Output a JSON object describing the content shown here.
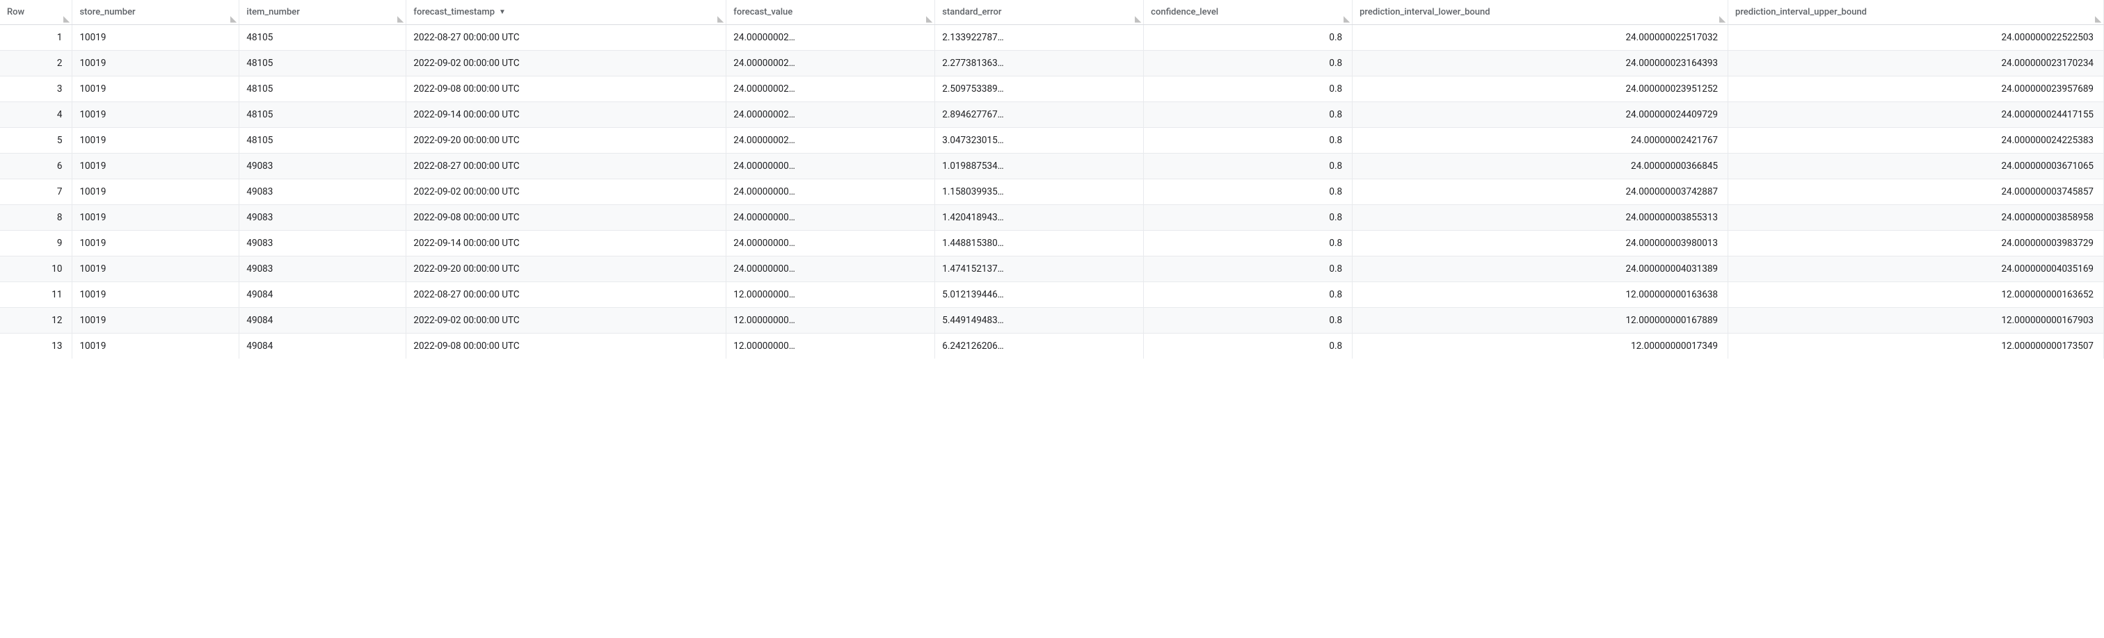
{
  "table": {
    "columns": [
      {
        "key": "row",
        "label": "Row",
        "align": "right",
        "sortable": false,
        "sorted": false
      },
      {
        "key": "store_number",
        "label": "store_number",
        "align": "left",
        "sortable": true,
        "sorted": false
      },
      {
        "key": "item_number",
        "label": "item_number",
        "align": "left",
        "sortable": true,
        "sorted": false
      },
      {
        "key": "forecast_timestamp",
        "label": "forecast_timestamp",
        "align": "left",
        "sortable": true,
        "sorted": true
      },
      {
        "key": "forecast_value",
        "label": "forecast_value",
        "align": "left",
        "sortable": true,
        "sorted": false
      },
      {
        "key": "standard_error",
        "label": "standard_error",
        "align": "left",
        "sortable": true,
        "sorted": false
      },
      {
        "key": "confidence_level",
        "label": "confidence_level",
        "align": "right",
        "sortable": true,
        "sorted": false
      },
      {
        "key": "prediction_interval_lower_bound",
        "label": "prediction_interval_lower_bound",
        "align": "right",
        "sortable": true,
        "sorted": false
      },
      {
        "key": "prediction_interval_upper_bound",
        "label": "prediction_interval_upper_bound",
        "align": "right",
        "sortable": true,
        "sorted": false
      }
    ],
    "rows": [
      {
        "row": "1",
        "store_number": "10019",
        "item_number": "48105",
        "forecast_timestamp": "2022-08-27 00:00:00 UTC",
        "forecast_value": "24.00000002…",
        "standard_error": "2.133922787…",
        "confidence_level": "0.8",
        "prediction_interval_lower_bound": "24.000000022517032",
        "prediction_interval_upper_bound": "24.000000022522503"
      },
      {
        "row": "2",
        "store_number": "10019",
        "item_number": "48105",
        "forecast_timestamp": "2022-09-02 00:00:00 UTC",
        "forecast_value": "24.00000002…",
        "standard_error": "2.277381363…",
        "confidence_level": "0.8",
        "prediction_interval_lower_bound": "24.000000023164393",
        "prediction_interval_upper_bound": "24.000000023170234"
      },
      {
        "row": "3",
        "store_number": "10019",
        "item_number": "48105",
        "forecast_timestamp": "2022-09-08 00:00:00 UTC",
        "forecast_value": "24.00000002…",
        "standard_error": "2.509753389…",
        "confidence_level": "0.8",
        "prediction_interval_lower_bound": "24.000000023951252",
        "prediction_interval_upper_bound": "24.000000023957689"
      },
      {
        "row": "4",
        "store_number": "10019",
        "item_number": "48105",
        "forecast_timestamp": "2022-09-14 00:00:00 UTC",
        "forecast_value": "24.00000002…",
        "standard_error": "2.894627767…",
        "confidence_level": "0.8",
        "prediction_interval_lower_bound": "24.000000024409729",
        "prediction_interval_upper_bound": "24.000000024417155"
      },
      {
        "row": "5",
        "store_number": "10019",
        "item_number": "48105",
        "forecast_timestamp": "2022-09-20 00:00:00 UTC",
        "forecast_value": "24.00000002…",
        "standard_error": "3.047323015…",
        "confidence_level": "0.8",
        "prediction_interval_lower_bound": "24.00000002421767",
        "prediction_interval_upper_bound": "24.000000024225383"
      },
      {
        "row": "6",
        "store_number": "10019",
        "item_number": "49083",
        "forecast_timestamp": "2022-08-27 00:00:00 UTC",
        "forecast_value": "24.00000000…",
        "standard_error": "1.019887534…",
        "confidence_level": "0.8",
        "prediction_interval_lower_bound": "24.00000000366845",
        "prediction_interval_upper_bound": "24.000000003671065"
      },
      {
        "row": "7",
        "store_number": "10019",
        "item_number": "49083",
        "forecast_timestamp": "2022-09-02 00:00:00 UTC",
        "forecast_value": "24.00000000…",
        "standard_error": "1.158039935…",
        "confidence_level": "0.8",
        "prediction_interval_lower_bound": "24.000000003742887",
        "prediction_interval_upper_bound": "24.000000003745857"
      },
      {
        "row": "8",
        "store_number": "10019",
        "item_number": "49083",
        "forecast_timestamp": "2022-09-08 00:00:00 UTC",
        "forecast_value": "24.00000000…",
        "standard_error": "1.420418943…",
        "confidence_level": "0.8",
        "prediction_interval_lower_bound": "24.000000003855313",
        "prediction_interval_upper_bound": "24.000000003858958"
      },
      {
        "row": "9",
        "store_number": "10019",
        "item_number": "49083",
        "forecast_timestamp": "2022-09-14 00:00:00 UTC",
        "forecast_value": "24.00000000…",
        "standard_error": "1.448815380…",
        "confidence_level": "0.8",
        "prediction_interval_lower_bound": "24.000000003980013",
        "prediction_interval_upper_bound": "24.000000003983729"
      },
      {
        "row": "10",
        "store_number": "10019",
        "item_number": "49083",
        "forecast_timestamp": "2022-09-20 00:00:00 UTC",
        "forecast_value": "24.00000000…",
        "standard_error": "1.474152137…",
        "confidence_level": "0.8",
        "prediction_interval_lower_bound": "24.000000004031389",
        "prediction_interval_upper_bound": "24.000000004035169"
      },
      {
        "row": "11",
        "store_number": "10019",
        "item_number": "49084",
        "forecast_timestamp": "2022-08-27 00:00:00 UTC",
        "forecast_value": "12.00000000…",
        "standard_error": "5.012139446…",
        "confidence_level": "0.8",
        "prediction_interval_lower_bound": "12.000000000163638",
        "prediction_interval_upper_bound": "12.000000000163652"
      },
      {
        "row": "12",
        "store_number": "10019",
        "item_number": "49084",
        "forecast_timestamp": "2022-09-02 00:00:00 UTC",
        "forecast_value": "12.00000000…",
        "standard_error": "5.449149483…",
        "confidence_level": "0.8",
        "prediction_interval_lower_bound": "12.000000000167889",
        "prediction_interval_upper_bound": "12.000000000167903"
      },
      {
        "row": "13",
        "store_number": "10019",
        "item_number": "49084",
        "forecast_timestamp": "2022-09-08 00:00:00 UTC",
        "forecast_value": "12.00000000…",
        "standard_error": "6.242126206…",
        "confidence_level": "0.8",
        "prediction_interval_lower_bound": "12.00000000017349",
        "prediction_interval_upper_bound": "12.000000000173507"
      }
    ],
    "styling": {
      "header_text_color": "#5f6368",
      "body_text_color": "#202124",
      "border_color": "#e8eaed",
      "header_border_color": "#dadce0",
      "even_row_bg": "#f8f9fa",
      "odd_row_bg": "#ffffff",
      "font_family": "Roboto, Arial, sans-serif",
      "header_font_size": 13,
      "body_font_size": 13.5
    }
  }
}
